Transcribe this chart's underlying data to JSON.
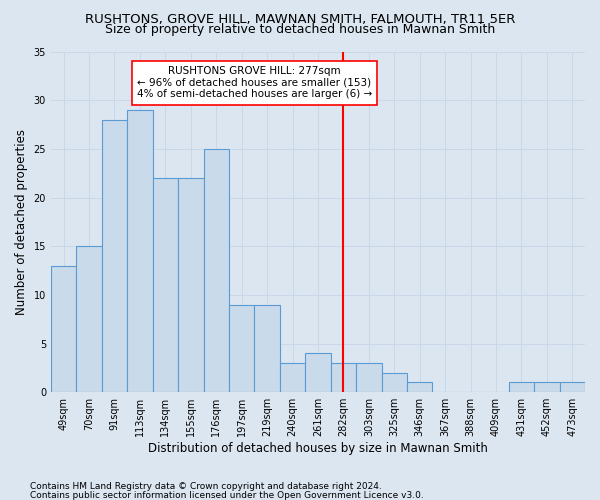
{
  "title": "RUSHTONS, GROVE HILL, MAWNAN SMITH, FALMOUTH, TR11 5ER",
  "subtitle": "Size of property relative to detached houses in Mawnan Smith",
  "xlabel": "Distribution of detached houses by size in Mawnan Smith",
  "ylabel": "Number of detached properties",
  "footnote1": "Contains HM Land Registry data © Crown copyright and database right 2024.",
  "footnote2": "Contains public sector information licensed under the Open Government Licence v3.0.",
  "categories": [
    "49sqm",
    "70sqm",
    "91sqm",
    "113sqm",
    "134sqm",
    "155sqm",
    "176sqm",
    "197sqm",
    "219sqm",
    "240sqm",
    "261sqm",
    "282sqm",
    "303sqm",
    "325sqm",
    "346sqm",
    "367sqm",
    "388sqm",
    "409sqm",
    "431sqm",
    "452sqm",
    "473sqm"
  ],
  "values": [
    13,
    15,
    28,
    29,
    22,
    22,
    25,
    9,
    9,
    3,
    4,
    3,
    3,
    2,
    1,
    0,
    0,
    0,
    1,
    1,
    1
  ],
  "bar_color": "#c9daea",
  "bar_edge_color": "#5b9bd5",
  "bar_linewidth": 0.8,
  "vline_index": 11,
  "vline_color": "red",
  "vline_linewidth": 1.5,
  "annotation_line1": "RUSHTONS GROVE HILL: 277sqm",
  "annotation_line2": "← 96% of detached houses are smaller (153)",
  "annotation_line3": "4% of semi-detached houses are larger (6) →",
  "annotation_box_color": "white",
  "annotation_box_edge": "red",
  "grid_color": "#c8d8e8",
  "background_color": "#dce6f1",
  "ylim": [
    0,
    35
  ],
  "yticks": [
    0,
    5,
    10,
    15,
    20,
    25,
    30,
    35
  ],
  "title_fontsize": 9.5,
  "subtitle_fontsize": 9,
  "xlabel_fontsize": 8.5,
  "ylabel_fontsize": 8.5,
  "tick_fontsize": 7,
  "footnote_fontsize": 6.5
}
